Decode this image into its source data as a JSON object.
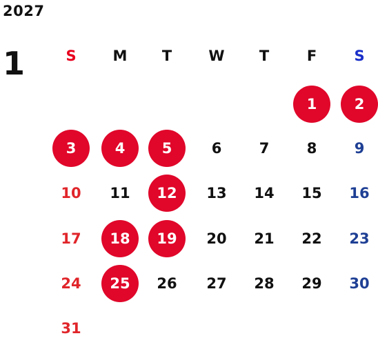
{
  "calendar": {
    "year": "2027",
    "month": "1",
    "weekday_headers": [
      "S",
      "M",
      "T",
      "W",
      "T",
      "F",
      "S"
    ],
    "first_weekday_index": 5,
    "days": [
      {
        "label": "1",
        "holiday": true
      },
      {
        "label": "2",
        "holiday": true
      },
      {
        "label": "3",
        "holiday": true
      },
      {
        "label": "4",
        "holiday": true
      },
      {
        "label": "5",
        "holiday": true
      },
      {
        "label": "6",
        "holiday": false
      },
      {
        "label": "7",
        "holiday": false
      },
      {
        "label": "8",
        "holiday": false
      },
      {
        "label": "9",
        "holiday": false
      },
      {
        "label": "10",
        "holiday": false
      },
      {
        "label": "11",
        "holiday": false
      },
      {
        "label": "12",
        "holiday": true
      },
      {
        "label": "13",
        "holiday": false
      },
      {
        "label": "14",
        "holiday": false
      },
      {
        "label": "15",
        "holiday": false
      },
      {
        "label": "16",
        "holiday": false
      },
      {
        "label": "17",
        "holiday": false
      },
      {
        "label": "18",
        "holiday": true
      },
      {
        "label": "19",
        "holiday": true
      },
      {
        "label": "20",
        "holiday": false
      },
      {
        "label": "21",
        "holiday": false
      },
      {
        "label": "22",
        "holiday": false
      },
      {
        "label": "23",
        "holiday": false
      },
      {
        "label": "24",
        "holiday": false
      },
      {
        "label": "25",
        "holiday": true
      },
      {
        "label": "26",
        "holiday": false
      },
      {
        "label": "27",
        "holiday": false
      },
      {
        "label": "28",
        "holiday": false
      },
      {
        "label": "29",
        "holiday": false
      },
      {
        "label": "30",
        "holiday": false
      },
      {
        "label": "31",
        "holiday": false
      }
    ]
  },
  "colors": {
    "text": "#111111",
    "sunday_header": "#e8001e",
    "saturday_header": "#1a2fc9",
    "sunday_day": "#e0252a",
    "saturday_day": "#1e3f94",
    "holiday_fill": "#e0072a",
    "holiday_text": "#ffffff"
  }
}
